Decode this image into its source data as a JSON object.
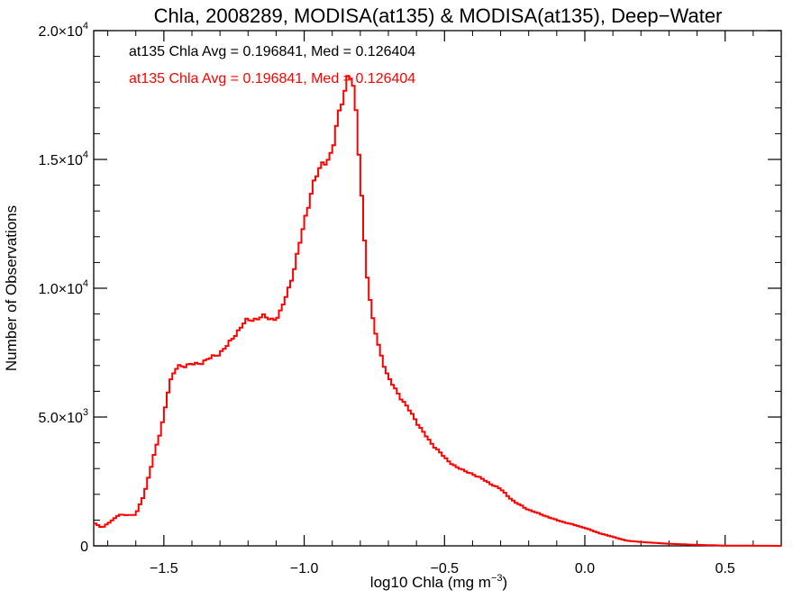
{
  "chart_data": {
    "type": "histogram",
    "title": "Chla, 2008289, MODISA(at135) & MODISA(at135), Deep−Water",
    "xlabel": "log10 Chla (mg m",
    "xlabel_sup": "−3",
    "xlabel_end": ")",
    "ylabel": "Number of Observations",
    "xlim": [
      -1.75,
      0.7
    ],
    "ylim": [
      0,
      20000
    ],
    "grid": false,
    "x_ticks": [
      {
        "value": -1.5,
        "label": "−1.5"
      },
      {
        "value": -1.0,
        "label": "−1.0"
      },
      {
        "value": -0.5,
        "label": "−0.5"
      },
      {
        "value": 0.0,
        "label": "0.0"
      },
      {
        "value": 0.5,
        "label": "0.5"
      }
    ],
    "y_ticks": [
      {
        "value": 0,
        "base": "0",
        "exp": ""
      },
      {
        "value": 5000,
        "base": "5.0×10",
        "exp": "3"
      },
      {
        "value": 10000,
        "base": "1.0×10",
        "exp": "4"
      },
      {
        "value": 15000,
        "base": "1.5×10",
        "exp": "4"
      },
      {
        "value": 20000,
        "base": "2.0×10",
        "exp": "4"
      }
    ],
    "annotations": [
      {
        "text": "at135 Chla Avg = 0.196841, Med = 0.126404",
        "color": "#000000"
      },
      {
        "text": "at135 Chla Avg = 0.196841, Med = 0.126404",
        "color": "#ff0000"
      }
    ],
    "series": [
      {
        "color": "#ff0000",
        "x": [
          -1.75,
          -1.72,
          -1.69,
          -1.66,
          -1.63,
          -1.6,
          -1.57,
          -1.54,
          -1.51,
          -1.48,
          -1.45,
          -1.42,
          -1.39,
          -1.36,
          -1.33,
          -1.3,
          -1.27,
          -1.24,
          -1.21,
          -1.18,
          -1.15,
          -1.12,
          -1.09,
          -1.06,
          -1.03,
          -1.0,
          -0.97,
          -0.94,
          -0.92,
          -0.9,
          -0.88,
          -0.86,
          -0.84,
          -0.82,
          -0.8,
          -0.78,
          -0.76,
          -0.74,
          -0.72,
          -0.7,
          -0.67,
          -0.64,
          -0.61,
          -0.58,
          -0.55,
          -0.52,
          -0.49,
          -0.46,
          -0.43,
          -0.4,
          -0.35,
          -0.3,
          -0.25,
          -0.2,
          -0.15,
          -0.1,
          -0.05,
          0.0,
          0.05,
          0.1,
          0.15,
          0.2,
          0.3,
          0.4,
          0.5,
          0.6,
          0.7
        ],
        "y": [
          900,
          700,
          950,
          1200,
          1200,
          1200,
          2000,
          3300,
          4500,
          6300,
          7000,
          7000,
          7050,
          7150,
          7300,
          7500,
          7800,
          8300,
          8700,
          8800,
          8900,
          8800,
          8900,
          9800,
          11000,
          12500,
          14000,
          14700,
          15000,
          15300,
          16500,
          17500,
          18500,
          17500,
          14500,
          11000,
          9000,
          8000,
          7200,
          6500,
          6000,
          5500,
          5000,
          4500,
          4000,
          3700,
          3300,
          3100,
          2900,
          2800,
          2500,
          2200,
          1700,
          1400,
          1200,
          1000,
          850,
          700,
          500,
          350,
          200,
          150,
          80,
          40,
          10,
          5,
          0
        ]
      }
    ]
  }
}
